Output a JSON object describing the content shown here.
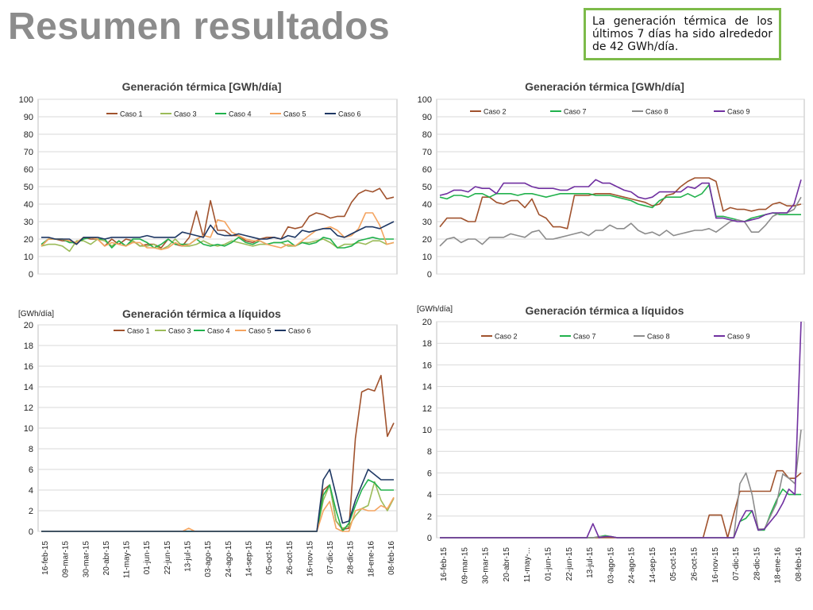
{
  "slide": {
    "title": "Resumen resultados",
    "note": "La generación térmica de los últimos 7 días ha sido alrededor de 42 GWh/día."
  },
  "colors": {
    "Caso 1": "#a0522d",
    "Caso 2": "#a0522d",
    "Caso 3": "#9bbb59",
    "Caso 4": "#21b14c",
    "Caso 5": "#f4a460",
    "Caso 6": "#1f3864",
    "Caso 7": "#21b14c",
    "Caso 8": "#8c8c8c",
    "Caso 9": "#7030a0",
    "accent_border": "#7dbb4a"
  },
  "chart_data": [
    {
      "id": "c1",
      "type": "line",
      "title": "Generación térmica [GWh/día]",
      "ylabel": "",
      "ylim": [
        0,
        100
      ],
      "yticks": [
        0,
        10,
        20,
        30,
        40,
        50,
        60,
        70,
        80,
        90,
        100
      ],
      "x_tick_labels": [],
      "grid": true,
      "legend": "top",
      "series": [
        {
          "name": "Caso 1",
          "values": [
            16,
            20,
            20,
            19,
            19,
            17,
            21,
            20,
            20,
            16,
            20,
            17,
            20,
            19,
            16,
            17,
            17,
            15,
            20,
            17,
            16,
            21,
            36,
            21,
            42,
            25,
            25,
            22,
            22,
            19,
            18,
            20,
            21,
            21,
            20,
            27,
            26,
            27,
            33,
            35,
            34,
            32,
            33,
            33,
            41,
            46,
            48,
            47,
            49,
            43,
            44
          ]
        },
        {
          "name": "Caso 3",
          "values": [
            16,
            17,
            17,
            16,
            13,
            19,
            19,
            17,
            20,
            19,
            16,
            19,
            16,
            19,
            16,
            16,
            17,
            14,
            16,
            20,
            16,
            16,
            17,
            19,
            17,
            16,
            17,
            19,
            18,
            17,
            16,
            17,
            17,
            18,
            18,
            16,
            16,
            18,
            18,
            19,
            20,
            18,
            15,
            17,
            17,
            18,
            17,
            19,
            19,
            17,
            18
          ]
        },
        {
          "name": "Caso 4",
          "values": [
            17,
            20,
            20,
            20,
            18,
            18,
            20,
            21,
            20,
            20,
            15,
            19,
            16,
            20,
            20,
            18,
            15,
            17,
            20,
            17,
            17,
            17,
            20,
            17,
            16,
            17,
            16,
            18,
            21,
            18,
            17,
            19,
            17,
            18,
            18,
            19,
            16,
            18,
            17,
            18,
            21,
            20,
            15,
            15,
            16,
            19,
            20,
            21,
            20,
            20,
            20
          ]
        },
        {
          "name": "Caso 5",
          "values": [
            16,
            20,
            20,
            20,
            19,
            18,
            21,
            21,
            20,
            16,
            18,
            17,
            16,
            18,
            18,
            15,
            15,
            14,
            15,
            18,
            16,
            17,
            20,
            22,
            21,
            31,
            30,
            24,
            22,
            20,
            19,
            19,
            17,
            16,
            15,
            17,
            16,
            19,
            22,
            25,
            26,
            27,
            25,
            21,
            22,
            26,
            35,
            35,
            28,
            17,
            18
          ]
        },
        {
          "name": "Caso 6",
          "values": [
            21,
            21,
            20,
            20,
            20,
            17,
            21,
            21,
            21,
            20,
            21,
            21,
            21,
            21,
            21,
            22,
            21,
            21,
            21,
            21,
            24,
            23,
            22,
            21,
            28,
            23,
            22,
            22,
            23,
            22,
            21,
            20,
            20,
            21,
            20,
            22,
            21,
            25,
            24,
            25,
            26,
            26,
            22,
            21,
            23,
            25,
            27,
            27,
            26,
            28,
            30
          ]
        }
      ]
    },
    {
      "id": "c2",
      "type": "line",
      "title": "Generación térmica [GWh/día]",
      "ylabel": "",
      "ylim": [
        0,
        100
      ],
      "yticks": [
        0,
        10,
        20,
        30,
        40,
        50,
        60,
        70,
        80,
        90,
        100
      ],
      "x_tick_labels": [],
      "grid": true,
      "legend": "top",
      "series": [
        {
          "name": "Caso 2",
          "values": [
            27,
            32,
            32,
            32,
            30,
            30,
            44,
            44,
            41,
            40,
            42,
            42,
            38,
            43,
            34,
            32,
            27,
            27,
            26,
            45,
            45,
            45,
            46,
            46,
            46,
            45,
            44,
            43,
            42,
            41,
            39,
            40,
            45,
            46,
            50,
            53,
            55,
            55,
            55,
            53,
            36,
            38,
            37,
            37,
            36,
            37,
            37,
            40,
            41,
            39,
            39,
            40
          ]
        },
        {
          "name": "Caso 7",
          "values": [
            44,
            43,
            45,
            45,
            44,
            46,
            46,
            44,
            46,
            46,
            46,
            45,
            46,
            46,
            45,
            44,
            45,
            46,
            46,
            46,
            46,
            46,
            45,
            45,
            45,
            44,
            43,
            42,
            40,
            39,
            38,
            42,
            44,
            44,
            44,
            46,
            44,
            46,
            51,
            33,
            33,
            32,
            31,
            30,
            32,
            33,
            34,
            35,
            34,
            34,
            34,
            34
          ]
        },
        {
          "name": "Caso 8",
          "values": [
            16,
            20,
            21,
            18,
            20,
            20,
            17,
            21,
            21,
            21,
            23,
            22,
            21,
            24,
            25,
            20,
            20,
            21,
            22,
            23,
            24,
            22,
            25,
            25,
            28,
            26,
            26,
            29,
            25,
            23,
            24,
            22,
            25,
            22,
            23,
            24,
            25,
            25,
            26,
            24,
            27,
            30,
            31,
            30,
            24,
            24,
            28,
            33,
            35,
            35,
            37,
            44
          ]
        },
        {
          "name": "Caso 9",
          "values": [
            45,
            46,
            48,
            48,
            47,
            50,
            49,
            49,
            46,
            52,
            52,
            52,
            52,
            50,
            49,
            49,
            49,
            48,
            48,
            50,
            50,
            50,
            54,
            52,
            52,
            50,
            48,
            47,
            44,
            43,
            44,
            47,
            47,
            47,
            47,
            50,
            49,
            52,
            52,
            32,
            32,
            31,
            30,
            30,
            31,
            32,
            34,
            35,
            35,
            35,
            40,
            54
          ]
        }
      ]
    },
    {
      "id": "c3",
      "type": "line",
      "title": "Generación térmica a líquidos",
      "ylabel": "[GWh/día]",
      "ylim": [
        0,
        20
      ],
      "yticks": [
        0,
        2,
        4,
        6,
        8,
        10,
        12,
        14,
        16,
        18,
        20
      ],
      "x_tick_labels": [
        "16-feb-15",
        "09-mar-15",
        "30-mar-15",
        "20-abr-15",
        "11-may-15",
        "01-jun-15",
        "22-jun-15",
        "13-jul-15",
        "03-ago-15",
        "24-ago-15",
        "14-sep-15",
        "05-oct-15",
        "26-oct-15",
        "16-nov-15",
        "07-dic-15",
        "28-dic-15",
        "18-ene-16",
        "08-feb-16"
      ],
      "grid": true,
      "legend": "top",
      "series": [
        {
          "name": "Caso 1",
          "values": [
            0,
            0,
            0,
            0,
            0,
            0,
            0,
            0,
            0,
            0,
            0,
            0,
            0,
            0,
            0,
            0,
            0,
            0,
            0,
            0,
            0,
            0,
            0,
            0,
            0,
            0,
            0,
            0,
            0,
            0,
            0,
            0,
            0,
            0,
            0,
            0,
            0,
            0,
            0,
            0,
            0,
            0,
            0,
            0,
            4,
            4.5,
            1,
            0.2,
            0.3,
            9,
            13.5,
            13.8,
            13.6,
            15.1,
            9.2,
            10.5
          ]
        },
        {
          "name": "Caso 3",
          "values": [
            0,
            0,
            0,
            0,
            0,
            0,
            0,
            0,
            0,
            0,
            0,
            0,
            0,
            0,
            0,
            0,
            0,
            0,
            0,
            0,
            0,
            0,
            0,
            0,
            0,
            0,
            0,
            0,
            0,
            0,
            0,
            0,
            0,
            0,
            0,
            0,
            0,
            0,
            0,
            0,
            0,
            0,
            0,
            0,
            3,
            4.5,
            1,
            0.3,
            0.5,
            1.5,
            2.2,
            2.5,
            4.8,
            3,
            2,
            3.2
          ]
        },
        {
          "name": "Caso 4",
          "values": [
            0,
            0,
            0,
            0,
            0,
            0,
            0,
            0,
            0,
            0,
            0,
            0,
            0,
            0,
            0,
            0,
            0,
            0,
            0,
            0,
            0,
            0,
            0,
            0,
            0,
            0,
            0,
            0,
            0,
            0,
            0,
            0,
            0,
            0,
            0,
            0,
            0,
            0,
            0,
            0,
            0,
            0,
            0,
            0,
            3.5,
            4.5,
            2,
            0,
            0.8,
            2.5,
            4,
            5,
            4.7,
            4,
            4,
            4
          ]
        },
        {
          "name": "Caso 5",
          "values": [
            0,
            0,
            0,
            0,
            0,
            0,
            0,
            0,
            0,
            0,
            0,
            0,
            0,
            0,
            0,
            0,
            0,
            0,
            0,
            0,
            0,
            0,
            0,
            0.3,
            0,
            0,
            0,
            0,
            0,
            0,
            0,
            0,
            0,
            0,
            0,
            0,
            0,
            0,
            0,
            0,
            0,
            0,
            0,
            0,
            2,
            2.9,
            0.3,
            0,
            0,
            2,
            2.2,
            2,
            2,
            2.5,
            2.2,
            3.3
          ]
        },
        {
          "name": "Caso 6",
          "values": [
            0,
            0,
            0,
            0,
            0,
            0,
            0,
            0,
            0,
            0,
            0,
            0,
            0,
            0,
            0,
            0,
            0,
            0,
            0,
            0,
            0,
            0,
            0,
            0,
            0,
            0,
            0,
            0,
            0,
            0,
            0,
            0,
            0,
            0,
            0,
            0,
            0,
            0,
            0,
            0,
            0,
            0,
            0,
            0,
            5,
            6,
            3.5,
            0.8,
            1,
            3,
            4.5,
            6,
            5.5,
            5,
            5,
            5
          ]
        }
      ]
    },
    {
      "id": "c4",
      "type": "line",
      "title": "Generación térmica a líquidos",
      "ylabel": "[GWh/día]",
      "ylim": [
        0,
        20
      ],
      "yticks": [
        0,
        2,
        4,
        6,
        8,
        10,
        12,
        14,
        16,
        18,
        20
      ],
      "x_tick_labels": [
        "16-feb-15",
        "09-mar-15",
        "30-mar-15",
        "20-abr-15",
        "11-may-...",
        "01-jun-15",
        "22-jun-15",
        "13-jul-15",
        "03-ago-15",
        "24-ago-15",
        "14-sep-15",
        "05-oct-15",
        "26-oct-15",
        "16-nov-15",
        "07-dic-15",
        "28-dic-15",
        "18-ene-16",
        "08-feb-16"
      ],
      "grid": true,
      "legend": "top",
      "series": [
        {
          "name": "Caso 2",
          "values": [
            0,
            0,
            0,
            0,
            0,
            0,
            0,
            0,
            0,
            0,
            0,
            0,
            0,
            0,
            0,
            0,
            0,
            0,
            0,
            0,
            0,
            0,
            0,
            0,
            0,
            0,
            0,
            0,
            0,
            0,
            0,
            0,
            0,
            0,
            0,
            0,
            0,
            0,
            0,
            0,
            0,
            0,
            0,
            0,
            2.1,
            2.1,
            2.1,
            0,
            2.2,
            4.3,
            4.3,
            4.3,
            4.3,
            4.3,
            4.3,
            6.2,
            6.2,
            5.5,
            5.5,
            6
          ]
        },
        {
          "name": "Caso 7",
          "values": [
            0,
            0,
            0,
            0,
            0,
            0,
            0,
            0,
            0,
            0,
            0,
            0,
            0,
            0,
            0,
            0,
            0,
            0,
            0,
            0,
            0,
            0,
            0,
            0,
            0,
            0,
            0.1,
            0.2,
            0.1,
            0,
            0,
            0,
            0,
            0,
            0,
            0,
            0,
            0,
            0,
            0,
            0,
            0,
            0,
            0,
            0,
            0,
            0,
            0,
            0,
            1.5,
            1.8,
            2.5,
            0.7,
            0.7,
            2.2,
            3.5,
            4.5,
            4,
            4,
            4
          ]
        },
        {
          "name": "Caso 8",
          "values": [
            0,
            0,
            0,
            0,
            0,
            0,
            0,
            0,
            0,
            0,
            0,
            0,
            0,
            0,
            0,
            0,
            0,
            0,
            0,
            0,
            0,
            0,
            0,
            0,
            0,
            0,
            0.1,
            0.1,
            0.1,
            0,
            0,
            0,
            0,
            0,
            0,
            0,
            0,
            0,
            0,
            0,
            0,
            0,
            0,
            0,
            0,
            0,
            0,
            0,
            0,
            5,
            6,
            4,
            0.8,
            0.8,
            2,
            3.2,
            5.9,
            5.5,
            5,
            10
          ]
        },
        {
          "name": "Caso 9",
          "values": [
            0,
            0,
            0,
            0,
            0,
            0,
            0,
            0,
            0,
            0,
            0,
            0,
            0,
            0,
            0,
            0,
            0,
            0,
            0,
            0,
            0,
            0,
            0,
            0,
            0,
            1.3,
            0,
            0.1,
            0.1,
            0,
            0,
            0,
            0,
            0,
            0,
            0,
            0,
            0,
            0,
            0,
            0,
            0,
            0,
            0,
            0,
            0,
            0,
            0,
            0,
            1.5,
            2.5,
            2.5,
            0.7,
            0.8,
            1.5,
            2.2,
            3.2,
            4.5,
            4,
            20
          ]
        }
      ]
    }
  ]
}
